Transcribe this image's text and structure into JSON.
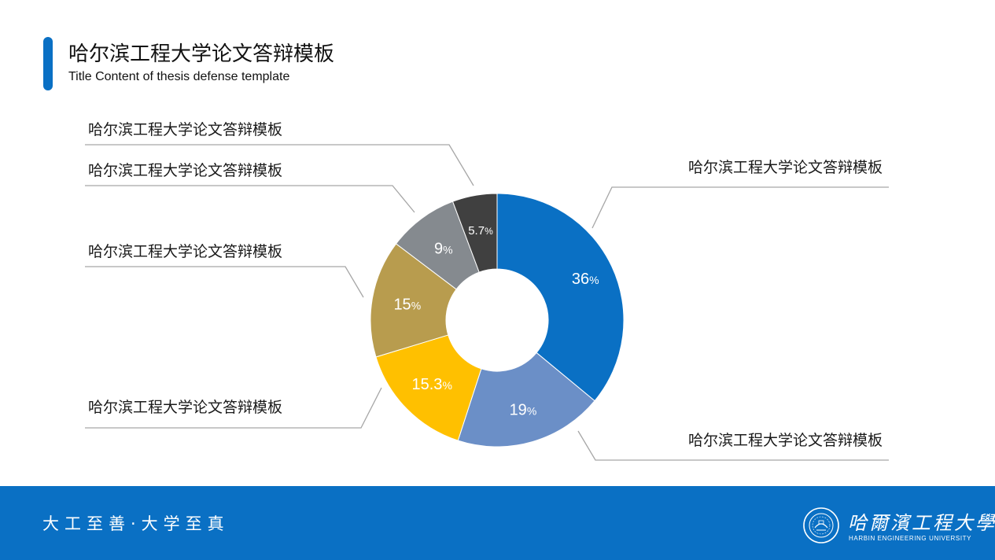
{
  "header": {
    "title": "哈尔滨工程大学论文答辩模板",
    "subtitle": "Title Content of thesis defense template",
    "accent_color": "#0a70c4"
  },
  "chart_data": {
    "type": "pie",
    "donut": true,
    "slices": [
      {
        "label": "哈尔滨工程大学论文答辩模板",
        "value": 36,
        "value_text": "36",
        "color": "#0a70c4"
      },
      {
        "label": "哈尔滨工程大学论文答辩模板",
        "value": 19,
        "value_text": "19",
        "color": "#6b8fc7"
      },
      {
        "label": "哈尔滨工程大学论文答辩模板",
        "value": 15.3,
        "value_text": "15.3",
        "color": "#ffc000"
      },
      {
        "label": "哈尔滨工程大学论文答辩模板",
        "value": 15,
        "value_text": "15",
        "color": "#b89c4e"
      },
      {
        "label": "哈尔滨工程大学论文答辩模板",
        "value": 9,
        "value_text": "9",
        "color": "#858a8f"
      },
      {
        "label": "哈尔滨工程大学论文答辩模板",
        "value": 5.7,
        "value_text": "5.7",
        "color": "#404040"
      }
    ],
    "percent_suffix": "%"
  },
  "footer": {
    "motto": "大工至善·大学至真",
    "logo_cn": "哈爾濱工程大學",
    "logo_en": "HARBIN ENGINEERING UNIVERSITY",
    "emblem_icon": "university-emblem-icon",
    "background_color": "#0a70c4"
  }
}
